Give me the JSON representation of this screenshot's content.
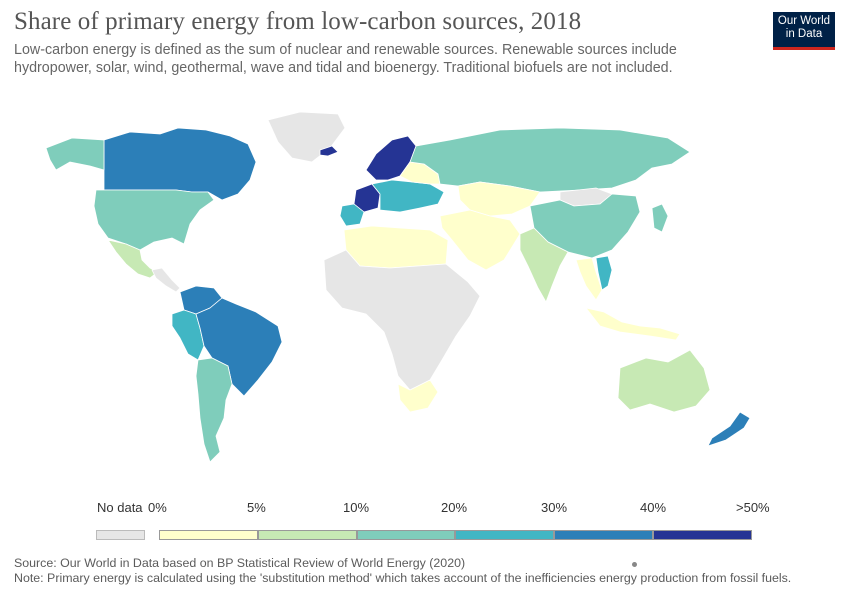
{
  "header": {
    "title": "Share of primary energy from low-carbon sources, 2018",
    "subtitle": "Low-carbon energy is defined as the sum of nuclear and renewable sources. Renewable sources include hydropower, solar, wind, geothermal, wave and tidal and bioenergy. Traditional biofuels are not included.",
    "logo_line1": "Our World",
    "logo_line2": "in Data"
  },
  "legend": {
    "no_data_label": "No data",
    "bin_labels": [
      "0%",
      "5%",
      "10%",
      "20%",
      "30%",
      "40%",
      ">50%"
    ],
    "no_data_color": "#e6e6e6",
    "bin_colors": [
      "#ffffcc",
      "#c7e9b4",
      "#7fcdbb",
      "#41b6c4",
      "#2c7fb8",
      "#253494"
    ]
  },
  "colors": {
    "no_data": "#e6e6e6",
    "bin_0_5": "#ffffcc",
    "bin_5_10": "#c7e9b4",
    "bin_10_20": "#7fcdbb",
    "bin_20_30": "#41b6c4",
    "bin_30_40": "#2c7fb8",
    "bin_40_50plus": "#253494",
    "ocean": "#ffffff"
  },
  "map": {
    "regions": [
      {
        "name": "greenland",
        "bin": "no_data"
      },
      {
        "name": "canada",
        "bin": "bin_30_40"
      },
      {
        "name": "alaska",
        "bin": "bin_10_20"
      },
      {
        "name": "united-states",
        "bin": "bin_10_20"
      },
      {
        "name": "mexico",
        "bin": "bin_5_10"
      },
      {
        "name": "central-america",
        "bin": "no_data"
      },
      {
        "name": "colombia-venezuela",
        "bin": "bin_30_40"
      },
      {
        "name": "ecuador-peru",
        "bin": "bin_20_30"
      },
      {
        "name": "brazil",
        "bin": "bin_30_40"
      },
      {
        "name": "chile-argentina",
        "bin": "bin_10_20"
      },
      {
        "name": "iceland",
        "bin": "bin_40_50plus"
      },
      {
        "name": "scandinavia",
        "bin": "bin_40_50plus"
      },
      {
        "name": "france",
        "bin": "bin_40_50plus"
      },
      {
        "name": "iberia",
        "bin": "bin_20_30"
      },
      {
        "name": "central-europe",
        "bin": "bin_20_30"
      },
      {
        "name": "eastern-europe",
        "bin": "bin_0_5"
      },
      {
        "name": "russia",
        "bin": "bin_10_20"
      },
      {
        "name": "kazakhstan",
        "bin": "bin_0_5"
      },
      {
        "name": "middle-east",
        "bin": "bin_0_5"
      },
      {
        "name": "north-africa",
        "bin": "bin_0_5"
      },
      {
        "name": "africa",
        "bin": "no_data"
      },
      {
        "name": "south-africa",
        "bin": "bin_0_5"
      },
      {
        "name": "china",
        "bin": "bin_10_20"
      },
      {
        "name": "mongolia",
        "bin": "no_data"
      },
      {
        "name": "india",
        "bin": "bin_5_10"
      },
      {
        "name": "southeast-asia",
        "bin": "bin_0_5"
      },
      {
        "name": "vietnam",
        "bin": "bin_20_30"
      },
      {
        "name": "japan",
        "bin": "bin_10_20"
      },
      {
        "name": "indonesia",
        "bin": "bin_0_5"
      },
      {
        "name": "australia",
        "bin": "bin_5_10"
      },
      {
        "name": "new-zealand",
        "bin": "bin_30_40"
      }
    ]
  },
  "footer": {
    "source": "Source: Our World in Data based on BP Statistical Review of World Energy (2020)",
    "note": "Note: Primary energy is calculated using the 'substitution method' which takes account of the inefficiencies energy production from fossil fuels."
  }
}
